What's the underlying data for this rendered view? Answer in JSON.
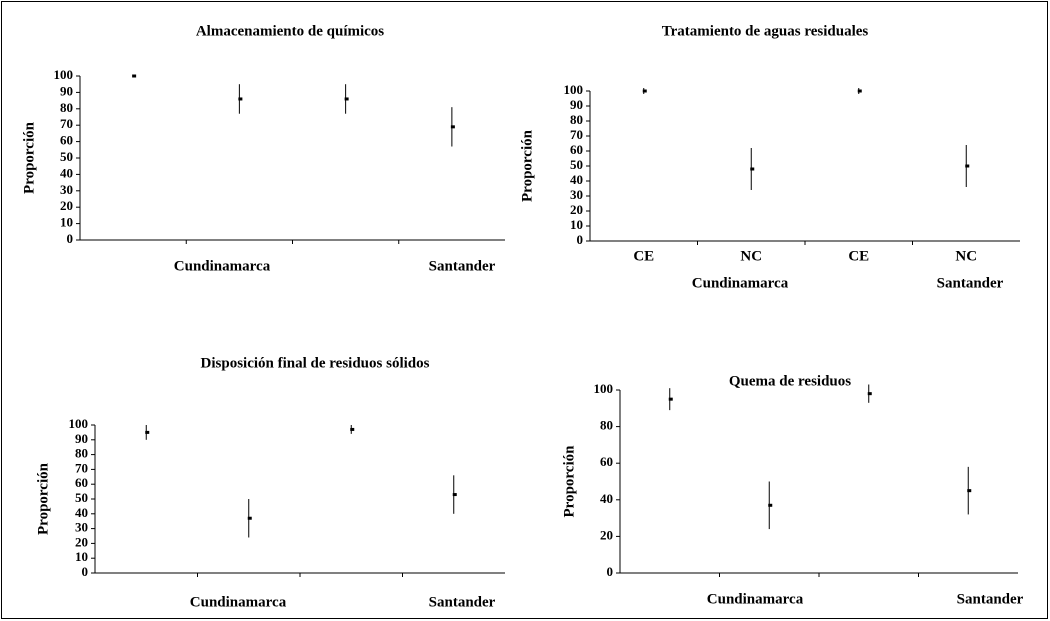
{
  "chart_data": [
    {
      "type": "errorbar",
      "title": "Almacenamiento de químicos",
      "ylabel": "Proporción",
      "categories": [
        null,
        null,
        null,
        null
      ],
      "groups": [
        "Cundinamarca",
        "Santander"
      ],
      "values": [
        100,
        86,
        86,
        69
      ],
      "errors": [
        0,
        9,
        9,
        12
      ],
      "ylim": [
        0,
        100
      ],
      "yticks": [
        0,
        10,
        20,
        30,
        40,
        50,
        60,
        70,
        80,
        90,
        100
      ],
      "color": "#000000"
    },
    {
      "type": "errorbar",
      "title": "Tratamiento de aguas residuales",
      "ylabel": "Proporción",
      "categories": [
        "CE",
        "NC",
        "CE",
        "NC"
      ],
      "groups": [
        "Cundinamarca",
        "Santander"
      ],
      "values": [
        100,
        48,
        100,
        50
      ],
      "errors": [
        2,
        14,
        2,
        14
      ],
      "ylim": [
        0,
        100
      ],
      "yticks": [
        0,
        10,
        20,
        30,
        40,
        50,
        60,
        70,
        80,
        90,
        100
      ],
      "color": "#000000"
    },
    {
      "type": "errorbar",
      "title": "Disposición final de residuos sólidos",
      "ylabel": "Proporción",
      "categories": [
        null,
        null,
        null,
        null
      ],
      "groups": [
        "Cundinamarca",
        "Santander"
      ],
      "values": [
        95,
        37,
        97,
        53
      ],
      "errors": [
        5,
        13,
        3,
        13
      ],
      "ylim": [
        0,
        100
      ],
      "yticks": [
        0,
        10,
        20,
        30,
        40,
        50,
        60,
        70,
        80,
        90,
        100
      ],
      "color": "#000000"
    },
    {
      "type": "errorbar",
      "title": "Quema de residuos",
      "ylabel": "Proporción",
      "categories": [
        null,
        null,
        null,
        null
      ],
      "groups": [
        "Cundinamarca",
        "Santander"
      ],
      "values": [
        95,
        37,
        98,
        45
      ],
      "errors": [
        6,
        13,
        5,
        13
      ],
      "ylim": [
        0,
        100
      ],
      "yticks": [
        0,
        20,
        40,
        60,
        80,
        100
      ],
      "color": "#000000"
    }
  ]
}
